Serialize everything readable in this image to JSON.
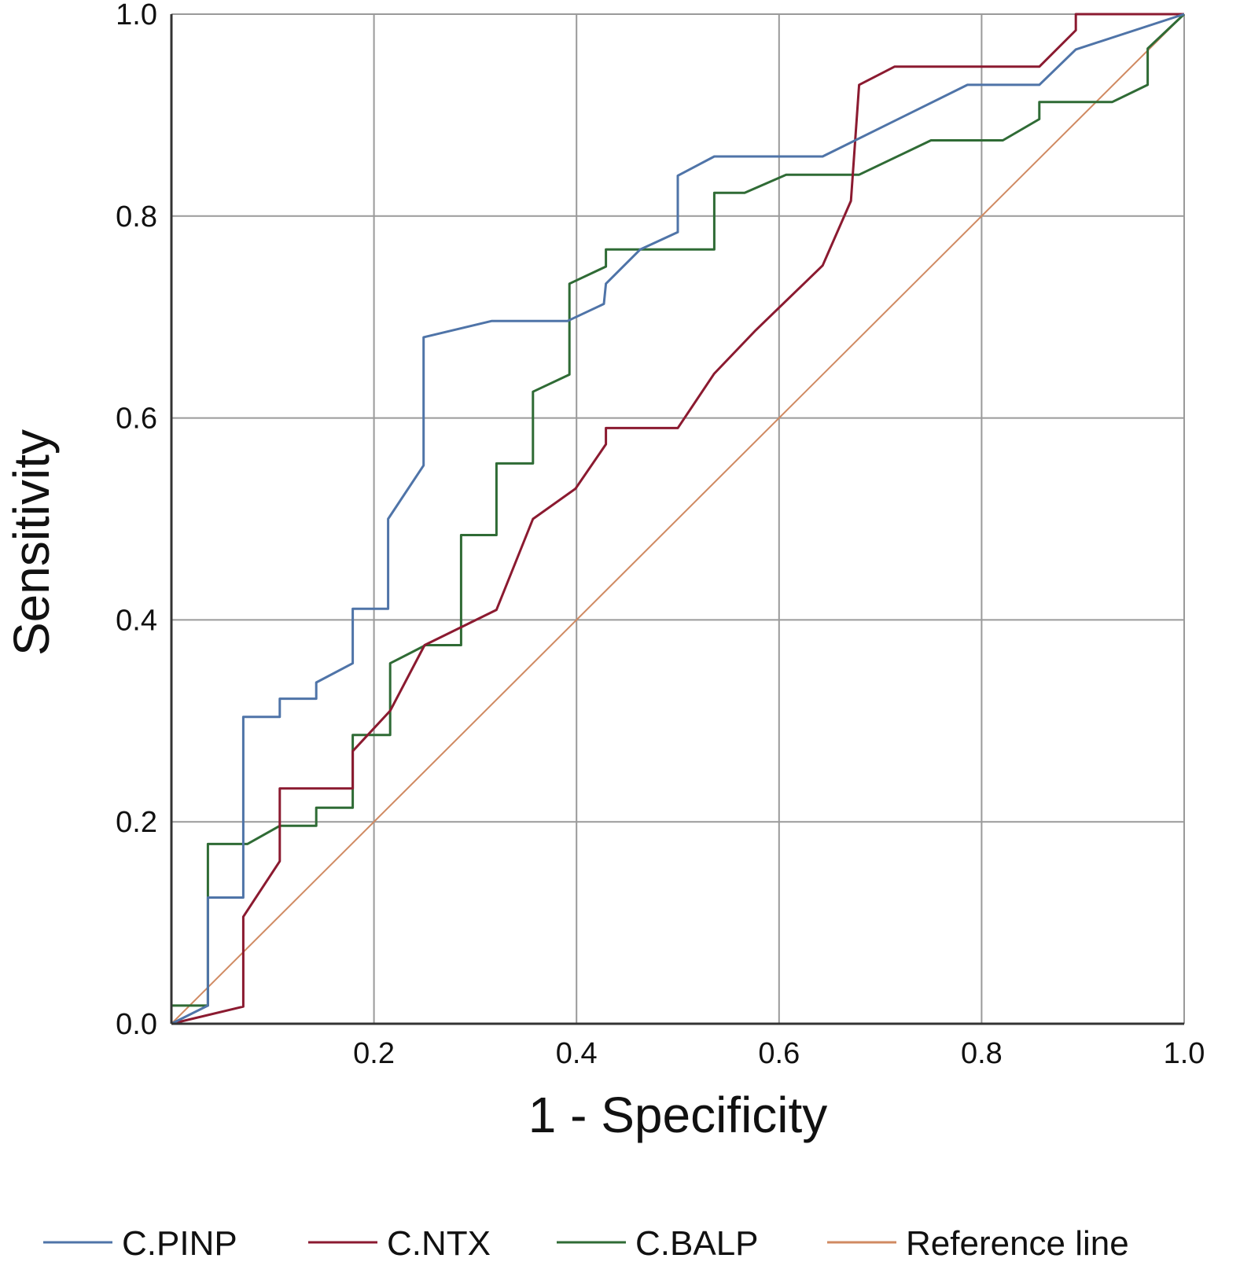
{
  "chart_data": {
    "type": "line",
    "title": "",
    "xlabel": "1 - Specificity",
    "ylabel": "Sensitivity",
    "xlim": [
      0,
      1
    ],
    "ylim": [
      0,
      1
    ],
    "grid": true,
    "legend_position": "bottom",
    "x_ticks": [
      "0.2",
      "0.4",
      "0.6",
      "0.8",
      "1.0"
    ],
    "y_ticks": [
      "0.0",
      "0.2",
      "0.4",
      "0.6",
      "0.8",
      "1.0"
    ],
    "series": [
      {
        "name": "C.PINP",
        "color": "#4f74a8",
        "points": [
          [
            0,
            0
          ],
          [
            0.036,
            0.018
          ],
          [
            0.036,
            0.125
          ],
          [
            0.071,
            0.125
          ],
          [
            0.071,
            0.304
          ],
          [
            0.107,
            0.304
          ],
          [
            0.107,
            0.322
          ],
          [
            0.143,
            0.322
          ],
          [
            0.143,
            0.338
          ],
          [
            0.179,
            0.357
          ],
          [
            0.179,
            0.411
          ],
          [
            0.214,
            0.411
          ],
          [
            0.214,
            0.5
          ],
          [
            0.249,
            0.553
          ],
          [
            0.249,
            0.68
          ],
          [
            0.316,
            0.696
          ],
          [
            0.391,
            0.696
          ],
          [
            0.427,
            0.713
          ],
          [
            0.429,
            0.733
          ],
          [
            0.463,
            0.767
          ],
          [
            0.5,
            0.784
          ],
          [
            0.5,
            0.84
          ],
          [
            0.536,
            0.859
          ],
          [
            0.643,
            0.859
          ],
          [
            0.786,
            0.93
          ],
          [
            0.857,
            0.93
          ],
          [
            0.893,
            0.965
          ],
          [
            1,
            1
          ]
        ]
      },
      {
        "name": "C.NTX",
        "color": "#8b1a30",
        "points": [
          [
            0,
            0
          ],
          [
            0.071,
            0.017
          ],
          [
            0.071,
            0.106
          ],
          [
            0.107,
            0.161
          ],
          [
            0.107,
            0.233
          ],
          [
            0.179,
            0.233
          ],
          [
            0.179,
            0.27
          ],
          [
            0.216,
            0.31
          ],
          [
            0.25,
            0.375
          ],
          [
            0.321,
            0.41
          ],
          [
            0.357,
            0.5
          ],
          [
            0.399,
            0.53
          ],
          [
            0.429,
            0.574
          ],
          [
            0.429,
            0.59
          ],
          [
            0.5,
            0.59
          ],
          [
            0.536,
            0.644
          ],
          [
            0.577,
            0.687
          ],
          [
            0.643,
            0.751
          ],
          [
            0.671,
            0.815
          ],
          [
            0.679,
            0.93
          ],
          [
            0.714,
            0.948
          ],
          [
            0.857,
            0.948
          ],
          [
            0.893,
            0.984
          ],
          [
            0.893,
            1
          ],
          [
            1,
            1
          ]
        ]
      },
      {
        "name": "C.BALP",
        "color": "#2f6b35",
        "points": [
          [
            0,
            0.018
          ],
          [
            0.036,
            0.018
          ],
          [
            0.036,
            0.178
          ],
          [
            0.075,
            0.178
          ],
          [
            0.107,
            0.196
          ],
          [
            0.143,
            0.196
          ],
          [
            0.143,
            0.214
          ],
          [
            0.179,
            0.214
          ],
          [
            0.179,
            0.286
          ],
          [
            0.216,
            0.286
          ],
          [
            0.216,
            0.357
          ],
          [
            0.251,
            0.375
          ],
          [
            0.286,
            0.375
          ],
          [
            0.286,
            0.484
          ],
          [
            0.321,
            0.484
          ],
          [
            0.321,
            0.555
          ],
          [
            0.357,
            0.555
          ],
          [
            0.357,
            0.626
          ],
          [
            0.393,
            0.643
          ],
          [
            0.393,
            0.733
          ],
          [
            0.429,
            0.75
          ],
          [
            0.429,
            0.767
          ],
          [
            0.536,
            0.767
          ],
          [
            0.536,
            0.823
          ],
          [
            0.566,
            0.823
          ],
          [
            0.607,
            0.841
          ],
          [
            0.679,
            0.841
          ],
          [
            0.75,
            0.875
          ],
          [
            0.821,
            0.875
          ],
          [
            0.857,
            0.896
          ],
          [
            0.857,
            0.913
          ],
          [
            0.929,
            0.913
          ],
          [
            0.964,
            0.93
          ],
          [
            0.964,
            0.966
          ],
          [
            1,
            1
          ]
        ]
      },
      {
        "name": "Reference line",
        "color": "#d08a62",
        "points": [
          [
            0,
            0
          ],
          [
            1,
            1
          ]
        ]
      }
    ]
  }
}
